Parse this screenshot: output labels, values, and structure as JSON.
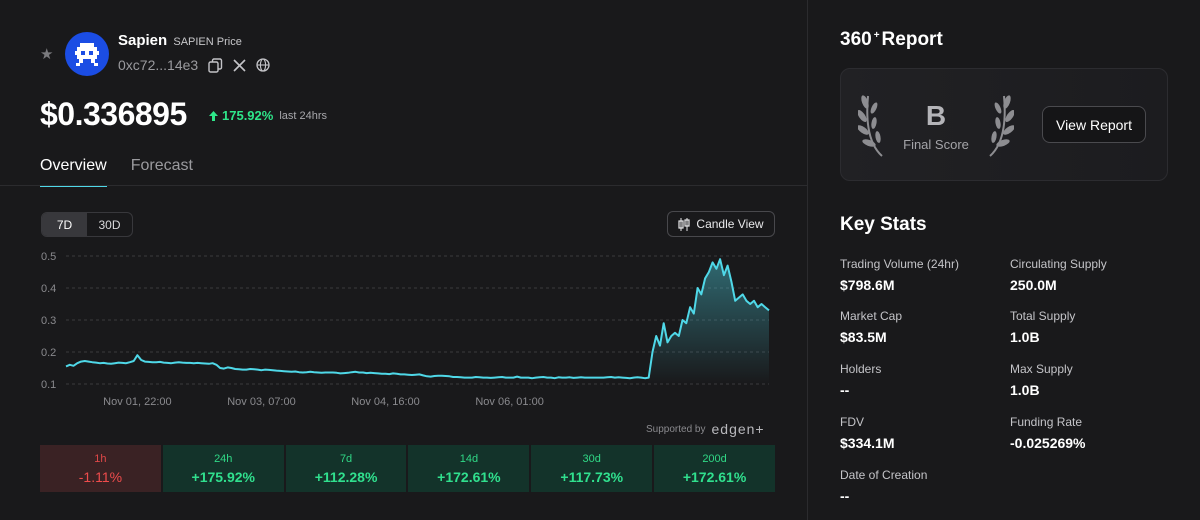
{
  "coin": {
    "name": "Sapien",
    "subtitle": "SAPIEN Price",
    "address": "0xc72...14e3"
  },
  "price": {
    "value": "$0.336895",
    "change": "175.92%",
    "period": "last 24hrs"
  },
  "tabs": [
    {
      "label": "Overview",
      "active": true
    },
    {
      "label": "Forecast",
      "active": false
    }
  ],
  "range_options": [
    {
      "label": "7D",
      "active": true
    },
    {
      "label": "30D",
      "active": false
    }
  ],
  "candle_label": "Candle View",
  "supported_by": "Supported by",
  "brand": "edgen+",
  "chart_data": {
    "type": "area",
    "y_ticks": [
      "0.5",
      "0.4",
      "0.3",
      "0.2",
      "0.1"
    ],
    "ylim": [
      0.1,
      0.5
    ],
    "x_ticks": [
      "Nov 01, 22:00",
      "Nov 03, 07:00",
      "Nov 04, 16:00",
      "Nov 06, 01:00"
    ],
    "x_tick_index": [
      19,
      52,
      85,
      118
    ],
    "values": [
      0.155,
      0.16,
      0.157,
      0.165,
      0.17,
      0.172,
      0.17,
      0.168,
      0.167,
      0.165,
      0.166,
      0.164,
      0.163,
      0.165,
      0.167,
      0.166,
      0.165,
      0.168,
      0.172,
      0.19,
      0.175,
      0.17,
      0.169,
      0.168,
      0.168,
      0.169,
      0.167,
      0.166,
      0.165,
      0.167,
      0.168,
      0.167,
      0.166,
      0.166,
      0.165,
      0.166,
      0.165,
      0.164,
      0.163,
      0.165,
      0.16,
      0.15,
      0.148,
      0.152,
      0.15,
      0.147,
      0.146,
      0.145,
      0.145,
      0.147,
      0.146,
      0.145,
      0.143,
      0.145,
      0.144,
      0.143,
      0.142,
      0.141,
      0.14,
      0.139,
      0.138,
      0.139,
      0.137,
      0.136,
      0.137,
      0.138,
      0.137,
      0.136,
      0.135,
      0.136,
      0.136,
      0.136,
      0.135,
      0.133,
      0.134,
      0.135,
      0.137,
      0.138,
      0.136,
      0.136,
      0.134,
      0.135,
      0.134,
      0.133,
      0.132,
      0.132,
      0.131,
      0.133,
      0.132,
      0.13,
      0.13,
      0.129,
      0.128,
      0.129,
      0.13,
      0.127,
      0.124,
      0.123,
      0.125,
      0.126,
      0.126,
      0.125,
      0.124,
      0.122,
      0.122,
      0.121,
      0.12,
      0.12,
      0.12,
      0.122,
      0.121,
      0.12,
      0.12,
      0.119,
      0.12,
      0.121,
      0.122,
      0.12,
      0.12,
      0.12,
      0.123,
      0.12,
      0.12,
      0.12,
      0.118,
      0.12,
      0.121,
      0.122,
      0.12,
      0.12,
      0.118,
      0.121,
      0.12,
      0.12,
      0.121,
      0.119,
      0.12,
      0.121,
      0.12,
      0.12,
      0.12,
      0.12,
      0.12,
      0.12,
      0.121,
      0.122,
      0.12,
      0.121,
      0.12,
      0.119,
      0.118,
      0.12,
      0.121,
      0.12,
      0.118,
      0.12,
      0.2,
      0.25,
      0.22,
      0.29,
      0.23,
      0.25,
      0.26,
      0.25,
      0.3,
      0.29,
      0.34,
      0.32,
      0.4,
      0.38,
      0.43,
      0.45,
      0.48,
      0.46,
      0.49,
      0.44,
      0.47,
      0.42,
      0.36,
      0.37,
      0.38,
      0.36,
      0.35,
      0.36,
      0.34,
      0.35,
      0.34,
      0.33
    ]
  },
  "performance": [
    {
      "label": "1h",
      "value": "-1.11%",
      "direction": "down"
    },
    {
      "label": "24h",
      "value": "+175.92%",
      "direction": "up"
    },
    {
      "label": "7d",
      "value": "+112.28%",
      "direction": "up"
    },
    {
      "label": "14d",
      "value": "+172.61%",
      "direction": "up"
    },
    {
      "label": "30d",
      "value": "+117.73%",
      "direction": "up"
    },
    {
      "label": "200d",
      "value": "+172.61%",
      "direction": "up"
    }
  ],
  "report": {
    "title_prefix": "360",
    "title_sup": "+",
    "title_suffix": "Report",
    "grade": "B",
    "grade_label": "Final Score",
    "button": "View Report"
  },
  "key_stats": {
    "title": "Key Stats",
    "items": [
      {
        "label": "Trading Volume (24hr)",
        "value": "$798.6M"
      },
      {
        "label": "Circulating Supply",
        "value": "250.0M"
      },
      {
        "label": "Market Cap",
        "value": "$83.5M"
      },
      {
        "label": "Total Supply",
        "value": "1.0B"
      },
      {
        "label": "Holders",
        "value": "--"
      },
      {
        "label": "Max Supply",
        "value": "1.0B"
      },
      {
        "label": "FDV",
        "value": "$334.1M"
      },
      {
        "label": "Funding Rate",
        "value": "-0.025269%"
      },
      {
        "label": "Date of Creation",
        "value": "--"
      }
    ]
  },
  "colors": {
    "accent": "#4fd8e8",
    "up": "#30e08e",
    "down": "#ef4c4c",
    "background": "#19191b"
  }
}
